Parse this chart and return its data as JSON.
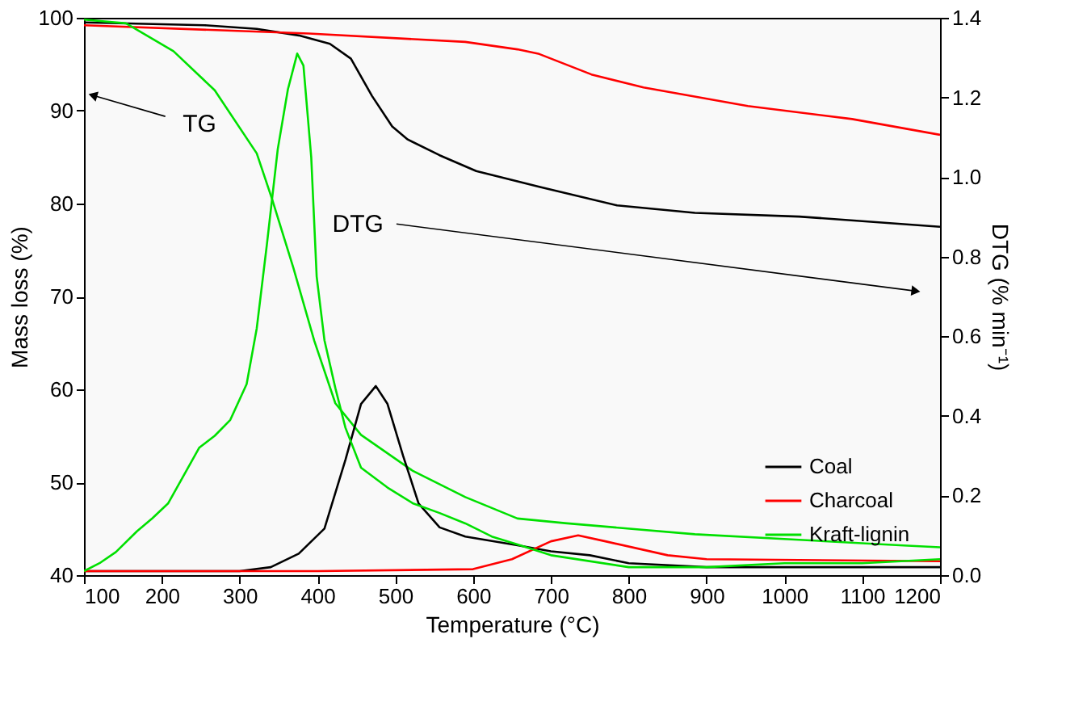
{
  "chart_data": {
    "type": "line",
    "xlabel": "Temperature (°C)",
    "ylabel": "Mass loss (%)",
    "y2label": "DTG (% min⁻¹)",
    "xlim": [
      100,
      1200
    ],
    "xticks": [
      100,
      200,
      300,
      400,
      500,
      600,
      700,
      800,
      900,
      1000,
      1100,
      1200
    ],
    "ylim": [
      40,
      100
    ],
    "yticks": [
      40,
      50,
      60,
      70,
      80,
      90,
      100
    ],
    "y2lim": [
      0,
      1.4
    ],
    "y2ticks": [
      {
        "value": 0,
        "label": "0.0"
      },
      0.2,
      0.4,
      0.6,
      0.8,
      {
        "value": 1,
        "label": "1.0"
      },
      1.2,
      1.4
    ],
    "legend": "bottom right",
    "grid": false,
    "annotations": [
      "TG",
      "DTG"
    ],
    "series": [
      {
        "name": "Coal",
        "color": "#000000",
        "x": [
          100,
          255,
          322,
          376,
          416,
          443,
          470,
          496,
          516,
          557,
          604,
          657,
          685,
          785,
          885,
          1019,
          1200
        ],
        "values": [
          99.5,
          99.2,
          98.8,
          98.1,
          97.2,
          95.6,
          91.6,
          88.3,
          86.9,
          85.2,
          83.5,
          82.4,
          81.8,
          79.8,
          79.0,
          78.6,
          77.5
        ]
      },
      {
        "name": "Charcoal",
        "color": "#ff0000",
        "x": [
          100,
          389,
          590,
          657,
          685,
          752,
          819,
          953,
          1087,
          1200
        ],
        "values": [
          99.2,
          98.3,
          97.4,
          96.6,
          96.1,
          93.9,
          92.5,
          90.5,
          89.1,
          87.4
        ]
      },
      {
        "name": "Kraft-lignin",
        "color": "#00e000",
        "x": [
          100,
          154,
          215,
          268,
          322,
          342,
          369,
          396,
          423,
          456,
          523,
          590,
          657,
          718,
          885,
          1019,
          1153,
          1200
        ],
        "values": [
          99.8,
          99.4,
          96.4,
          92.2,
          85.4,
          80.4,
          73.1,
          65.2,
          58.5,
          55.1,
          51.2,
          48.4,
          46.1,
          45.6,
          44.4,
          43.8,
          43.2,
          43.0
        ]
      },
      {
        "type": "line",
        "axis": "y2",
        "color": "#000000",
        "x": [
          100,
          300,
          340,
          376,
          409,
          436,
          456,
          475,
          490,
          510,
          530,
          557,
          590,
          657,
          700,
          750,
          800,
          900,
          1200
        ],
        "values": [
          0.01,
          0.01,
          0.02,
          0.054,
          0.117,
          0.29,
          0.43,
          0.475,
          0.43,
          0.3,
          0.18,
          0.12,
          0.097,
          0.075,
          0.06,
          0.05,
          0.03,
          0.02,
          0.02
        ]
      },
      {
        "type": "line",
        "axis": "y2",
        "color": "#ff0000",
        "x": [
          100,
          400,
          600,
          650,
          700,
          735,
          770,
          850,
          900,
          1200
        ],
        "values": [
          0.01,
          0.01,
          0.015,
          0.04,
          0.085,
          0.1,
          0.085,
          0.05,
          0.04,
          0.035
        ]
      },
      {
        "type": "line",
        "axis": "y2",
        "color": "#00e000",
        "x": [
          100,
          120,
          141,
          168,
          188,
          208,
          228,
          248,
          268,
          288,
          309,
          322,
          335,
          349,
          362,
          374,
          382,
          392,
          399,
          409,
          423,
          436,
          456,
          490,
          523,
          557,
          590,
          624,
          657,
          700,
          800,
          900,
          1000,
          1100,
          1200
        ],
        "values": [
          0.01,
          0.03,
          0.058,
          0.11,
          0.143,
          0.18,
          0.25,
          0.32,
          0.35,
          0.39,
          0.48,
          0.62,
          0.83,
          1.07,
          1.22,
          1.31,
          1.28,
          1.05,
          0.75,
          0.59,
          0.47,
          0.37,
          0.27,
          0.22,
          0.18,
          0.156,
          0.13,
          0.097,
          0.077,
          0.05,
          0.02,
          0.02,
          0.03,
          0.03,
          0.04
        ]
      }
    ]
  }
}
